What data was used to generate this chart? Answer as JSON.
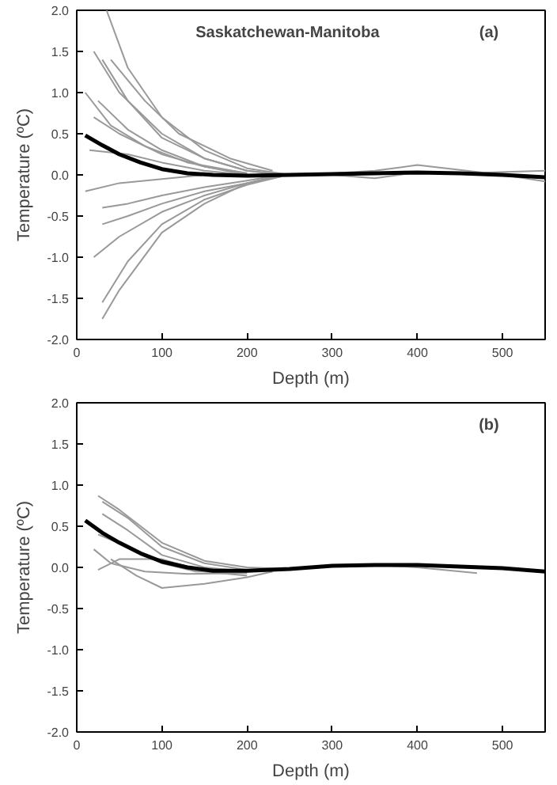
{
  "chart_data": [
    {
      "type": "line",
      "xlabel": "Depth (m)",
      "ylabel": "Temperature (ºC)",
      "annotations": [
        "Saskatchewan-Manitoba",
        "(a)"
      ],
      "xlim": [
        0,
        550
      ],
      "xticks": [
        0,
        100,
        200,
        300,
        400,
        500
      ],
      "ylim": [
        -2,
        2
      ],
      "yticks": [
        {
          "value": -2,
          "label": "-2.0"
        },
        {
          "value": -1.5,
          "label": "-1.5"
        },
        {
          "value": -1,
          "label": "-1.0"
        },
        {
          "value": -0.5,
          "label": "-0.5"
        },
        {
          "value": 0,
          "label": "0.0"
        },
        {
          "value": 0.5,
          "label": "0.5"
        },
        {
          "value": 1,
          "label": "1.0"
        },
        {
          "value": 1.5,
          "label": "1.5"
        },
        {
          "value": 2,
          "label": "2.0"
        }
      ],
      "grid": false,
      "series": [
        {
          "color": "#999999",
          "x": [
            35,
            60,
            100,
            150,
            200,
            250,
            300,
            350,
            400,
            450,
            500,
            550
          ],
          "values": [
            2.0,
            1.3,
            0.7,
            0.3,
            0.08,
            0.0,
            0.02,
            0.05,
            0.12,
            0.06,
            0.0,
            -0.08
          ]
        },
        {
          "color": "#999999",
          "x": [
            20,
            50,
            100,
            150,
            200,
            250,
            300,
            350,
            400,
            450,
            550
          ],
          "values": [
            1.5,
            1.0,
            0.5,
            0.2,
            0.05,
            0.0,
            0.0,
            -0.04,
            0.03,
            0.02,
            0.05
          ]
        },
        {
          "color": "#999999",
          "x": [
            30,
            60,
            100,
            150,
            200,
            240
          ],
          "values": [
            1.4,
            0.9,
            0.45,
            0.2,
            0.05,
            0.0
          ]
        },
        {
          "color": "#999999",
          "x": [
            40,
            80,
            120,
            180,
            230
          ],
          "values": [
            1.4,
            0.9,
            0.5,
            0.2,
            0.05
          ]
        },
        {
          "color": "#999999",
          "x": [
            10,
            40,
            80,
            130,
            200
          ],
          "values": [
            1.0,
            0.6,
            0.35,
            0.15,
            0.02
          ]
        },
        {
          "color": "#999999",
          "x": [
            25,
            60,
            100,
            150,
            200
          ],
          "values": [
            0.9,
            0.55,
            0.3,
            0.1,
            0.02
          ]
        },
        {
          "color": "#999999",
          "x": [
            20,
            50,
            100,
            150,
            200
          ],
          "values": [
            0.7,
            0.5,
            0.25,
            0.1,
            0.0
          ]
        },
        {
          "color": "#999999",
          "x": [
            15,
            60,
            100,
            150,
            200
          ],
          "values": [
            0.3,
            0.25,
            0.15,
            0.05,
            0.0
          ]
        },
        {
          "color": "#999999",
          "x": [
            10,
            50,
            100,
            150,
            200
          ],
          "values": [
            -0.2,
            -0.1,
            -0.05,
            0.0,
            0.0
          ]
        },
        {
          "color": "#999999",
          "x": [
            30,
            60,
            100,
            150,
            200,
            240
          ],
          "values": [
            -0.4,
            -0.35,
            -0.25,
            -0.15,
            -0.07,
            0.0
          ]
        },
        {
          "color": "#999999",
          "x": [
            30,
            60,
            100,
            150,
            200,
            240
          ],
          "values": [
            -0.6,
            -0.5,
            -0.35,
            -0.2,
            -0.1,
            -0.02
          ]
        },
        {
          "color": "#999999",
          "x": [
            20,
            50,
            100,
            150,
            200,
            240
          ],
          "values": [
            -1.0,
            -0.75,
            -0.45,
            -0.25,
            -0.1,
            0.0
          ]
        },
        {
          "color": "#999999",
          "x": [
            30,
            60,
            100,
            150,
            200,
            240
          ],
          "values": [
            -1.55,
            -1.05,
            -0.6,
            -0.3,
            -0.12,
            -0.02
          ]
        },
        {
          "color": "#999999",
          "x": [
            30,
            50,
            100,
            150,
            200
          ],
          "values": [
            -1.75,
            -1.4,
            -0.7,
            -0.35,
            -0.1
          ]
        },
        {
          "color": "#000000",
          "x": [
            10,
            30,
            50,
            75,
            100,
            130,
            160,
            200,
            250,
            300,
            350,
            400,
            450,
            500,
            550
          ],
          "values": [
            0.48,
            0.36,
            0.25,
            0.15,
            0.07,
            0.02,
            0.0,
            -0.01,
            0.0,
            0.01,
            0.02,
            0.03,
            0.02,
            0.0,
            -0.03
          ]
        }
      ]
    },
    {
      "type": "line",
      "xlabel": "Depth (m)",
      "ylabel": "Temperature (ºC)",
      "annotations": [
        "(b)"
      ],
      "xlim": [
        0,
        550
      ],
      "xticks": [
        0,
        100,
        200,
        300,
        400,
        500
      ],
      "ylim": [
        -2,
        2
      ],
      "yticks": [
        {
          "value": -2,
          "label": "-2.0"
        },
        {
          "value": -1.5,
          "label": "-1.5"
        },
        {
          "value": -1,
          "label": "-1.0"
        },
        {
          "value": -0.5,
          "label": "-0.5"
        },
        {
          "value": 0,
          "label": "0.0"
        },
        {
          "value": 0.5,
          "label": "0.5"
        },
        {
          "value": 1,
          "label": "1.0"
        },
        {
          "value": 1.5,
          "label": "1.5"
        },
        {
          "value": 2,
          "label": "2.0"
        }
      ],
      "grid": false,
      "series": [
        {
          "color": "#999999",
          "x": [
            25,
            50,
            100,
            150,
            200,
            250,
            300,
            350,
            400,
            470
          ],
          "values": [
            0.87,
            0.7,
            0.3,
            0.08,
            0.0,
            -0.02,
            0.02,
            0.03,
            0.0,
            -0.07
          ]
        },
        {
          "color": "#999999",
          "x": [
            30,
            60,
            100,
            150,
            200
          ],
          "values": [
            0.8,
            0.6,
            0.25,
            0.05,
            -0.03
          ]
        },
        {
          "color": "#999999",
          "x": [
            30,
            60,
            100,
            150,
            200
          ],
          "values": [
            0.65,
            0.45,
            0.15,
            0.0,
            -0.05
          ]
        },
        {
          "color": "#999999",
          "x": [
            25,
            60,
            100,
            140,
            180
          ],
          "values": [
            0.4,
            0.25,
            0.05,
            -0.05,
            -0.05
          ]
        },
        {
          "color": "#999999",
          "x": [
            20,
            40,
            80,
            130,
            200
          ],
          "values": [
            0.22,
            0.05,
            -0.05,
            -0.08,
            -0.07
          ]
        },
        {
          "color": "#999999",
          "x": [
            25,
            50,
            100,
            150,
            200
          ],
          "values": [
            -0.03,
            0.1,
            0.1,
            -0.05,
            -0.1
          ]
        },
        {
          "color": "#999999",
          "x": [
            40,
            70,
            100,
            150,
            200,
            230
          ],
          "values": [
            0.1,
            -0.1,
            -0.25,
            -0.2,
            -0.12,
            -0.05
          ]
        },
        {
          "color": "#000000",
          "x": [
            10,
            30,
            50,
            75,
            100,
            130,
            160,
            200,
            250,
            300,
            350,
            400,
            450,
            500,
            550
          ],
          "values": [
            0.57,
            0.42,
            0.3,
            0.17,
            0.07,
            0.0,
            -0.04,
            -0.04,
            -0.02,
            0.02,
            0.03,
            0.03,
            0.01,
            -0.01,
            -0.05
          ]
        }
      ]
    }
  ]
}
